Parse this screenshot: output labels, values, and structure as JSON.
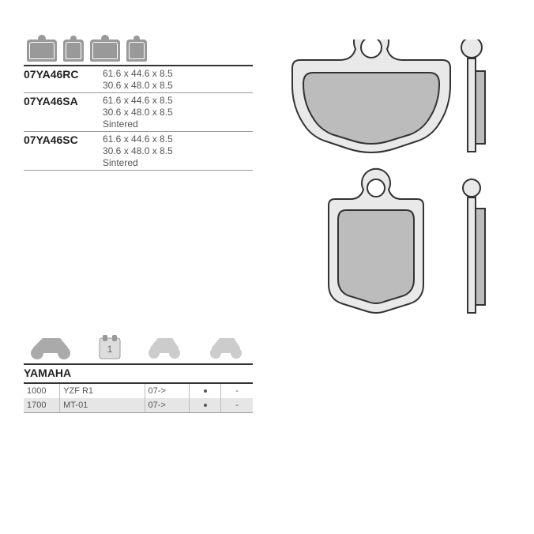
{
  "parts": [
    {
      "number": "07YA46RC",
      "dim1": "61.6 x 44.6 x 8.5",
      "dim2": "30.6 x 48.0 x 8.5",
      "material": ""
    },
    {
      "number": "07YA46SA",
      "dim1": "61.6 x 44.6 x 8.5",
      "dim2": "30.6 x 48.0 x 8.5",
      "material": "Sintered"
    },
    {
      "number": "07YA46SC",
      "dim1": "61.6 x 44.6 x 8.5",
      "dim2": "30.6 x 48.0 x 8.5",
      "material": "Sintered"
    }
  ],
  "brand": "YAMAHA",
  "applications": [
    {
      "cc": "1000",
      "model": "YZF R1",
      "year": "07->",
      "front": "•",
      "rear": "-"
    },
    {
      "cc": "1700",
      "model": "MT-01",
      "year": "07->",
      "front": "•",
      "rear": "-"
    }
  ],
  "colors": {
    "line": "#333333",
    "fill_light": "#e9e9e9",
    "fill_med": "#bcbcbc"
  }
}
